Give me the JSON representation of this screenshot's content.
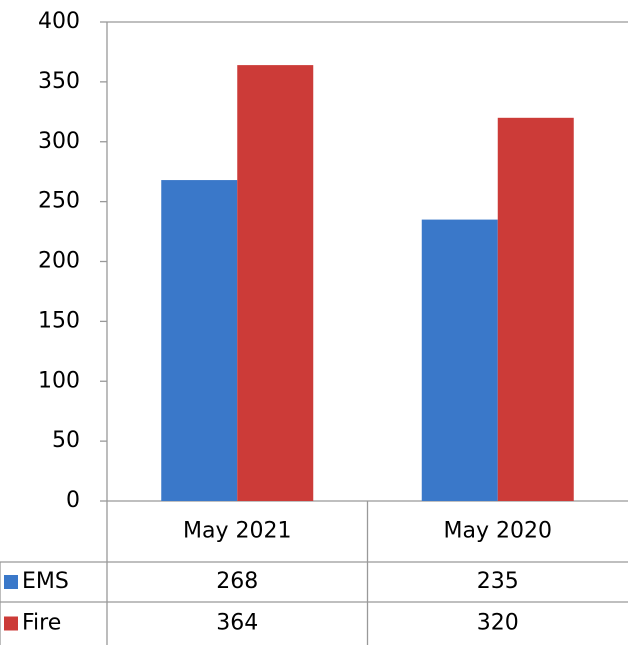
{
  "chart_data": {
    "type": "bar",
    "categories": [
      "May 2021",
      "May 2020"
    ],
    "series": [
      {
        "name": "EMS",
        "color": "#3a78c9",
        "values": [
          268,
          235
        ]
      },
      {
        "name": "Fire",
        "color": "#cc3b38",
        "values": [
          364,
          320
        ]
      }
    ],
    "ylim": [
      0,
      400
    ],
    "yticks": [
      0,
      50,
      100,
      150,
      200,
      250,
      300,
      350,
      400
    ],
    "grid": false
  }
}
